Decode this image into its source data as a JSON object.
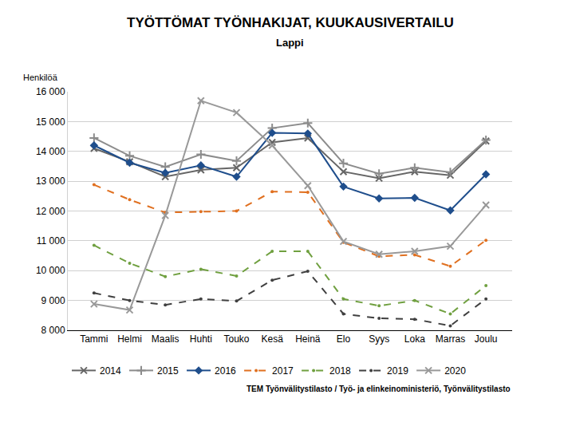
{
  "chart_data": {
    "type": "line",
    "title": "TYÖTTÖMAT TYÖNHAKIJAT, KUUKAUSIVERTAILU",
    "subtitle": "Lappi",
    "y_label": "Henkilöä",
    "source": "TEM Työnvälitystilasto / Työ- ja elinkeinoministeriö, Työnvälitystilasto",
    "categories": [
      "Tammi",
      "Helmi",
      "Maalis",
      "Huhti",
      "Touko",
      "Kesä",
      "Heinä",
      "Elo",
      "Syys",
      "Loka",
      "Marras",
      "Joulu"
    ],
    "series": [
      {
        "name": "2014",
        "color": "#666666",
        "marker": "x",
        "line_style": "solid",
        "values": [
          14100,
          13650,
          13150,
          13380,
          13450,
          14300,
          14450,
          13320,
          13100,
          13320,
          13200,
          14350
        ]
      },
      {
        "name": "2015",
        "color": "#8c8c8c",
        "marker": "cross",
        "line_style": "solid",
        "values": [
          14450,
          13850,
          13480,
          13900,
          13680,
          14780,
          14950,
          13600,
          13250,
          13450,
          13300,
          14380
        ]
      },
      {
        "name": "2016",
        "color": "#1f4e8c",
        "marker": "diamond",
        "line_style": "solid",
        "values": [
          14200,
          13620,
          13280,
          13530,
          13150,
          14620,
          14600,
          12820,
          12420,
          12440,
          12020,
          13230
        ]
      },
      {
        "name": "2017",
        "color": "#e07020",
        "marker": "circle",
        "line_style": "dash",
        "values": [
          12880,
          12380,
          11950,
          11980,
          12000,
          12650,
          12630,
          10950,
          10480,
          10530,
          10150,
          11020
        ]
      },
      {
        "name": "2018",
        "color": "#70a040",
        "marker": "circle",
        "line_style": "dash",
        "values": [
          10850,
          10250,
          9800,
          10050,
          9820,
          10650,
          10650,
          9050,
          8820,
          9000,
          8550,
          9500
        ]
      },
      {
        "name": "2019",
        "color": "#404040",
        "marker": "circle",
        "line_style": "dash",
        "values": [
          9250,
          9000,
          8850,
          9050,
          8980,
          9680,
          9980,
          8550,
          8400,
          8370,
          8150,
          9050
        ]
      },
      {
        "name": "2020",
        "color": "#999999",
        "marker": "x",
        "line_style": "solid",
        "values": [
          8880,
          8680,
          11850,
          15700,
          15300,
          14200,
          12850,
          10980,
          10550,
          10650,
          10820,
          12200
        ]
      }
    ],
    "ylim": [
      8000,
      16000
    ],
    "yticks": [
      {
        "value": 8000,
        "label": "8 000"
      },
      {
        "value": 9000,
        "label": "9 000"
      },
      {
        "value": 10000,
        "label": "10 000"
      },
      {
        "value": 11000,
        "label": "11 000"
      },
      {
        "value": 12000,
        "label": "12 000"
      },
      {
        "value": 13000,
        "label": "13 000"
      },
      {
        "value": 14000,
        "label": "14 000"
      },
      {
        "value": 15000,
        "label": "15 000"
      },
      {
        "value": 16000,
        "label": "16 000"
      }
    ],
    "grid": true,
    "legend": "bottom"
  }
}
